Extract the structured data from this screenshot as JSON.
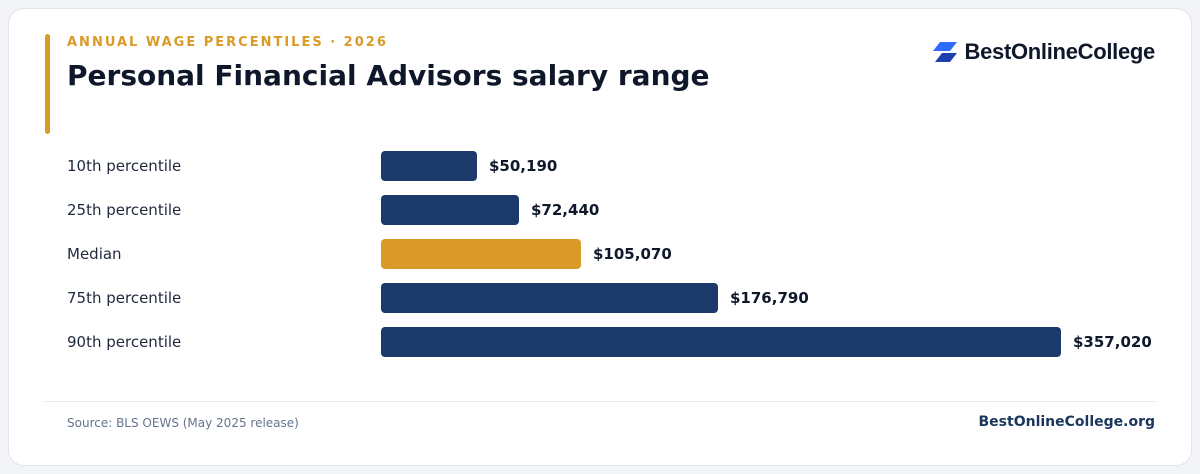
{
  "header": {
    "kicker": "ANNUAL WAGE PERCENTILES · 2026",
    "title": "Personal Financial Advisors salary range"
  },
  "brand": {
    "name": "BestOnlineCollege",
    "icon": "stacked-parallelogram-logo-icon"
  },
  "footer": {
    "source": "Source: BLS OEWS (May 2025 release)",
    "site": "BestOnlineCollege.org"
  },
  "colors": {
    "primary_bar": "#1b3a6b",
    "highlight_bar": "#d99a27",
    "accent": "#d99a27",
    "brand_blue": "#2f5be6"
  },
  "chart_data": {
    "type": "bar",
    "orientation": "horizontal",
    "categories": [
      "10th percentile",
      "25th percentile",
      "Median",
      "75th percentile",
      "90th percentile"
    ],
    "values": [
      50190,
      72440,
      105070,
      176790,
      357020
    ],
    "value_labels": [
      "$50,190",
      "$72,440",
      "$105,070",
      "$176,790",
      "$357,020"
    ],
    "highlight": "Median",
    "title": "Personal Financial Advisors salary range",
    "xlim": [
      0,
      357020
    ],
    "grid": false,
    "legend": "none"
  }
}
